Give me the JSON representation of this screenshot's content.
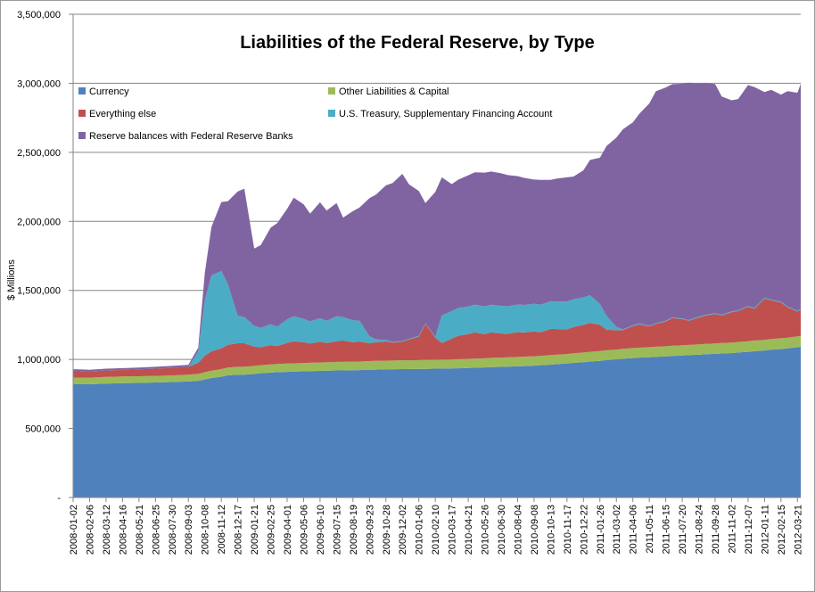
{
  "chart_data": {
    "type": "area",
    "stacked": true,
    "title": "Liabilities of the Federal Reserve, by Type",
    "ylabel": "$ Millions",
    "xlabel": "",
    "ylim": [
      0,
      3500000
    ],
    "yticks": [
      0,
      500000,
      1000000,
      1500000,
      2000000,
      2500000,
      3000000,
      3500000
    ],
    "ytick_labels": [
      "-",
      "500,000",
      "1,000,000",
      "1,500,000",
      "2,000,000",
      "2,500,000",
      "3,000,000",
      "3,500,000"
    ],
    "grid": true,
    "legend_position": "top-left",
    "tick_labels": [
      "2008-01-02",
      "2008-02-06",
      "2008-03-12",
      "2008-04-16",
      "2008-05-21",
      "2008-06-25",
      "2008-07-30",
      "2008-09-03",
      "2008-10-08",
      "2008-11-12",
      "2008-12-17",
      "2009-01-21",
      "2009-02-25",
      "2009-04-01",
      "2009-05-06",
      "2009-06-10",
      "2009-07-15",
      "2009-08-19",
      "2009-09-23",
      "2009-10-28",
      "2009-12-02",
      "2010-01-06",
      "2010-02-10",
      "2010-03-17",
      "2010-04-21",
      "2010-05-26",
      "2010-06-30",
      "2010-08-04",
      "2010-09-08",
      "2010-10-13",
      "2010-11-17",
      "2010-12-22",
      "2011-01-26",
      "2011-03-02",
      "2011-04-06",
      "2011-05-11",
      "2011-06-15",
      "2011-07-20",
      "2011-08-24",
      "2011-09-28",
      "2011-11-02",
      "2011-12-07",
      "2012-01-11",
      "2012-02-15",
      "2012-03-21"
    ],
    "x": [
      "2008-01-02",
      "2008-02-06",
      "2008-03-12",
      "2008-04-16",
      "2008-05-21",
      "2008-06-25",
      "2008-07-30",
      "2008-09-03",
      "2008-09-24",
      "2008-10-08",
      "2008-10-22",
      "2008-11-12",
      "2008-11-26",
      "2008-12-17",
      "2008-12-31",
      "2009-01-21",
      "2009-02-04",
      "2009-02-25",
      "2009-03-11",
      "2009-04-01",
      "2009-04-15",
      "2009-05-06",
      "2009-05-20",
      "2009-06-10",
      "2009-06-24",
      "2009-07-15",
      "2009-07-29",
      "2009-08-19",
      "2009-09-02",
      "2009-09-23",
      "2009-10-07",
      "2009-10-28",
      "2009-11-11",
      "2009-12-02",
      "2009-12-16",
      "2010-01-06",
      "2010-01-20",
      "2010-02-10",
      "2010-02-24",
      "2010-03-17",
      "2010-03-31",
      "2010-04-21",
      "2010-05-05",
      "2010-05-26",
      "2010-06-09",
      "2010-06-30",
      "2010-07-14",
      "2010-08-04",
      "2010-08-18",
      "2010-09-08",
      "2010-09-22",
      "2010-10-13",
      "2010-10-27",
      "2010-11-17",
      "2010-12-01",
      "2010-12-22",
      "2011-01-05",
      "2011-01-26",
      "2011-02-09",
      "2011-03-02",
      "2011-03-16",
      "2011-04-06",
      "2011-04-20",
      "2011-05-11",
      "2011-05-25",
      "2011-06-15",
      "2011-06-29",
      "2011-07-20",
      "2011-08-03",
      "2011-08-24",
      "2011-09-07",
      "2011-09-28",
      "2011-10-12",
      "2011-11-02",
      "2011-11-16",
      "2011-12-07",
      "2011-12-21",
      "2012-01-11",
      "2012-01-25",
      "2012-02-15",
      "2012-02-29",
      "2012-03-21",
      "2012-03-28"
    ],
    "series": [
      {
        "name": "Currency",
        "color": "#4f81bd",
        "values": [
          820000,
          820000,
          825000,
          828000,
          830000,
          833000,
          836000,
          840000,
          845000,
          855000,
          865000,
          875000,
          885000,
          890000,
          890000,
          895000,
          900000,
          905000,
          908000,
          910000,
          912000,
          914000,
          915000,
          917000,
          918000,
          920000,
          920000,
          922000,
          923000,
          925000,
          926000,
          928000,
          929000,
          930000,
          930000,
          931000,
          932000,
          933000,
          934000,
          935000,
          936000,
          938000,
          940000,
          942000,
          944000,
          946000,
          948000,
          950000,
          952000,
          955000,
          958000,
          962000,
          966000,
          970000,
          975000,
          980000,
          985000,
          990000,
          995000,
          1000000,
          1005000,
          1010000,
          1013000,
          1016000,
          1019000,
          1022000,
          1025000,
          1028000,
          1031000,
          1034000,
          1037000,
          1040000,
          1043000,
          1046000,
          1050000,
          1055000,
          1060000,
          1065000,
          1070000,
          1075000,
          1080000,
          1088000,
          1092000
        ]
      },
      {
        "name": "Other Liabilities & Capital",
        "color": "#9bbb59",
        "values": [
          48000,
          48000,
          48000,
          48000,
          48000,
          48000,
          48000,
          49000,
          50000,
          52000,
          54000,
          55000,
          56000,
          57000,
          57000,
          58000,
          58000,
          59000,
          59000,
          60000,
          60000,
          60000,
          61000,
          61000,
          61000,
          62000,
          62000,
          62000,
          62000,
          63000,
          63000,
          63000,
          63000,
          64000,
          64000,
          64000,
          65000,
          65000,
          65000,
          65000,
          66000,
          66000,
          66000,
          66000,
          67000,
          67000,
          67000,
          68000,
          68000,
          68000,
          68000,
          69000,
          69000,
          69000,
          70000,
          70000,
          70000,
          71000,
          71000,
          71000,
          72000,
          72000,
          72000,
          73000,
          73000,
          73000,
          74000,
          74000,
          74000,
          75000,
          75000,
          75000,
          76000,
          76000,
          76000,
          77000,
          77000,
          77000,
          78000,
          78000,
          78000,
          79000,
          79000
        ]
      },
      {
        "name": "Everything else",
        "color": "#c0504d",
        "values": [
          50000,
          45000,
          47000,
          48000,
          50000,
          52000,
          55000,
          58000,
          80000,
          120000,
          140000,
          150000,
          165000,
          170000,
          170000,
          140000,
          130000,
          140000,
          130000,
          150000,
          160000,
          150000,
          140000,
          150000,
          140000,
          150000,
          155000,
          140000,
          145000,
          130000,
          135000,
          140000,
          130000,
          135000,
          150000,
          170000,
          260000,
          160000,
          120000,
          150000,
          170000,
          180000,
          190000,
          175000,
          185000,
          175000,
          170000,
          180000,
          175000,
          180000,
          170000,
          190000,
          185000,
          180000,
          190000,
          200000,
          210000,
          190000,
          150000,
          140000,
          135000,
          160000,
          170000,
          150000,
          165000,
          180000,
          200000,
          190000,
          175000,
          195000,
          205000,
          215000,
          200000,
          220000,
          225000,
          250000,
          230000,
          300000,
          280000,
          260000,
          220000,
          180000,
          190000
        ]
      },
      {
        "name": "U.S. Treasury, Supplementary Financing Account",
        "color": "#4bacc6",
        "values": [
          0,
          0,
          0,
          0,
          0,
          0,
          0,
          0,
          80000,
          400000,
          550000,
          560000,
          440000,
          200000,
          190000,
          150000,
          140000,
          150000,
          140000,
          170000,
          180000,
          170000,
          160000,
          170000,
          160000,
          180000,
          170000,
          160000,
          150000,
          50000,
          20000,
          10000,
          5000,
          5000,
          5000,
          5000,
          5000,
          5000,
          200000,
          200000,
          200000,
          200000,
          200000,
          200000,
          200000,
          200000,
          200000,
          200000,
          200000,
          200000,
          200000,
          200000,
          200000,
          200000,
          200000,
          200000,
          200000,
          150000,
          100000,
          25000,
          5000,
          5000,
          5000,
          5000,
          5000,
          5000,
          5000,
          5000,
          5000,
          5000,
          5000,
          5000,
          5000,
          5000,
          5000,
          5000,
          5000,
          5000,
          5000,
          5000,
          5000,
          5000,
          5000
        ]
      },
      {
        "name": "Reserve balances with Federal Reserve Banks",
        "color": "#8064a2",
        "values": [
          12000,
          12000,
          13000,
          13000,
          13000,
          14000,
          14000,
          14000,
          30000,
          200000,
          350000,
          500000,
          600000,
          900000,
          930000,
          560000,
          600000,
          700000,
          750000,
          800000,
          860000,
          830000,
          780000,
          840000,
          800000,
          820000,
          720000,
          790000,
          820000,
          1000000,
          1050000,
          1120000,
          1150000,
          1210000,
          1120000,
          1050000,
          870000,
          1050000,
          1000000,
          920000,
          930000,
          950000,
          960000,
          970000,
          965000,
          960000,
          950000,
          930000,
          920000,
          900000,
          905000,
          880000,
          890000,
          900000,
          890000,
          920000,
          980000,
          1060000,
          1230000,
          1370000,
          1450000,
          1470000,
          1520000,
          1610000,
          1680000,
          1690000,
          1690000,
          1700000,
          1720000,
          1690000,
          1680000,
          1660000,
          1580000,
          1530000,
          1530000,
          1600000,
          1600000,
          1490000,
          1520000,
          1500000,
          1560000,
          1580000,
          1630000
        ]
      }
    ]
  }
}
